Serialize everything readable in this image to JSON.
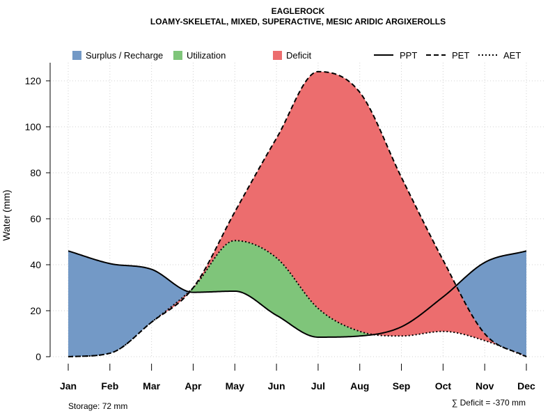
{
  "chart_data": {
    "type": "area",
    "title": "EAGLEROCK",
    "subtitle": "LOAMY-SKELETAL, MIXED, SUPERACTIVE, MESIC ARIDIC ARGIXEROLLS",
    "xlabel": "",
    "ylabel": "Water (mm)",
    "ylim": [
      0,
      128
    ],
    "yticks": [
      0,
      20,
      40,
      60,
      80,
      100,
      120
    ],
    "grid": true,
    "categories": [
      "Jan",
      "Feb",
      "Mar",
      "Apr",
      "May",
      "Jun",
      "Jul",
      "Aug",
      "Sep",
      "Oct",
      "Nov",
      "Dec"
    ],
    "lines": [
      {
        "name": "PPT",
        "style": "solid",
        "values": [
          46,
          40.5,
          38,
          28,
          28.5,
          18,
          8.5,
          9,
          13,
          26,
          41,
          46
        ]
      },
      {
        "name": "PET",
        "style": "dashed",
        "values": [
          0,
          1.5,
          15,
          30,
          63,
          95,
          124,
          115,
          78,
          42,
          10,
          0
        ]
      },
      {
        "name": "AET",
        "style": "dotted",
        "values": [
          0,
          1.5,
          15,
          30,
          50.5,
          43,
          21,
          11,
          9,
          11,
          7,
          0
        ]
      }
    ],
    "areas": [
      {
        "name": "Surplus / Recharge",
        "color": "#7399C6"
      },
      {
        "name": "Utilization",
        "color": "#7FC57A"
      },
      {
        "name": "Deficit",
        "color": "#EC6D6E"
      }
    ],
    "legend_position": "top",
    "annotations": {
      "storage": "Storage: 72 mm",
      "deficit": "∑ Deficit = -370 mm"
    }
  }
}
